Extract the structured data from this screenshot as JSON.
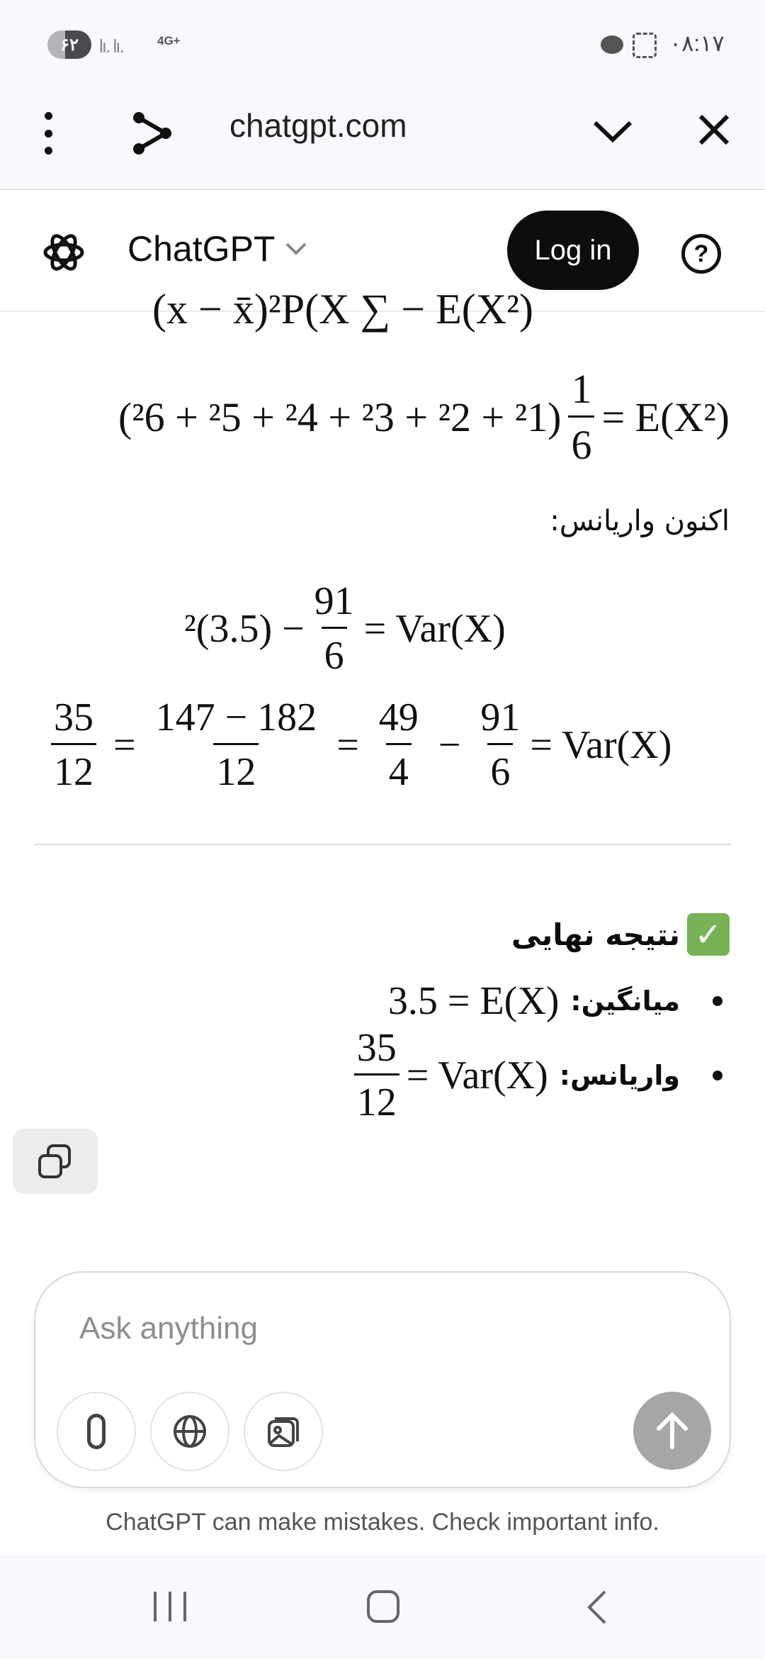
{
  "status_bar": {
    "battery": "۶۲",
    "network": "4G+",
    "time": "۰۸:۱۷"
  },
  "browser": {
    "url": "chatgpt.com"
  },
  "header": {
    "title": "ChatGPT",
    "login": "Log in",
    "help": "?"
  },
  "content": {
    "partial_formula": "(x − x̄)²P(X ∑ − E(X²)",
    "ex2_line": {
      "terms": "(²6 + ²5 + ²4 + ²3 + ²2 + ²1)",
      "frac_num": "1",
      "frac_den": "6",
      "rhs": "= E(X²)"
    },
    "variance_intro": "اکنون واریانس:",
    "var_line1": {
      "lhs": "²(3.5) −",
      "frac_num": "91",
      "frac_den": "6",
      "rhs": "= Var(X)"
    },
    "var_line2": {
      "f1_num": "35",
      "f1_den": "12",
      "f2_num": "147 − 182",
      "f2_den": "12",
      "f3_num": "49",
      "f3_den": "4",
      "f4_num": "91",
      "f4_den": "6",
      "eq": "=",
      "minus": "−",
      "rhs": "= Var(X)"
    },
    "result_heading": "نتیجه نهایی",
    "results": [
      {
        "label": "میانگین:",
        "value": "3.5 = E(X)"
      },
      {
        "label": "واریانس:",
        "frac_num": "35",
        "frac_den": "12",
        "value": "= Var(X)"
      }
    ]
  },
  "composer": {
    "placeholder": "Ask anything",
    "disclaimer": "ChatGPT can make mistakes. Check important info."
  },
  "colors": {
    "check": "#77b255",
    "send": "#a6a6a6",
    "login_bg": "#0d0d0d"
  }
}
